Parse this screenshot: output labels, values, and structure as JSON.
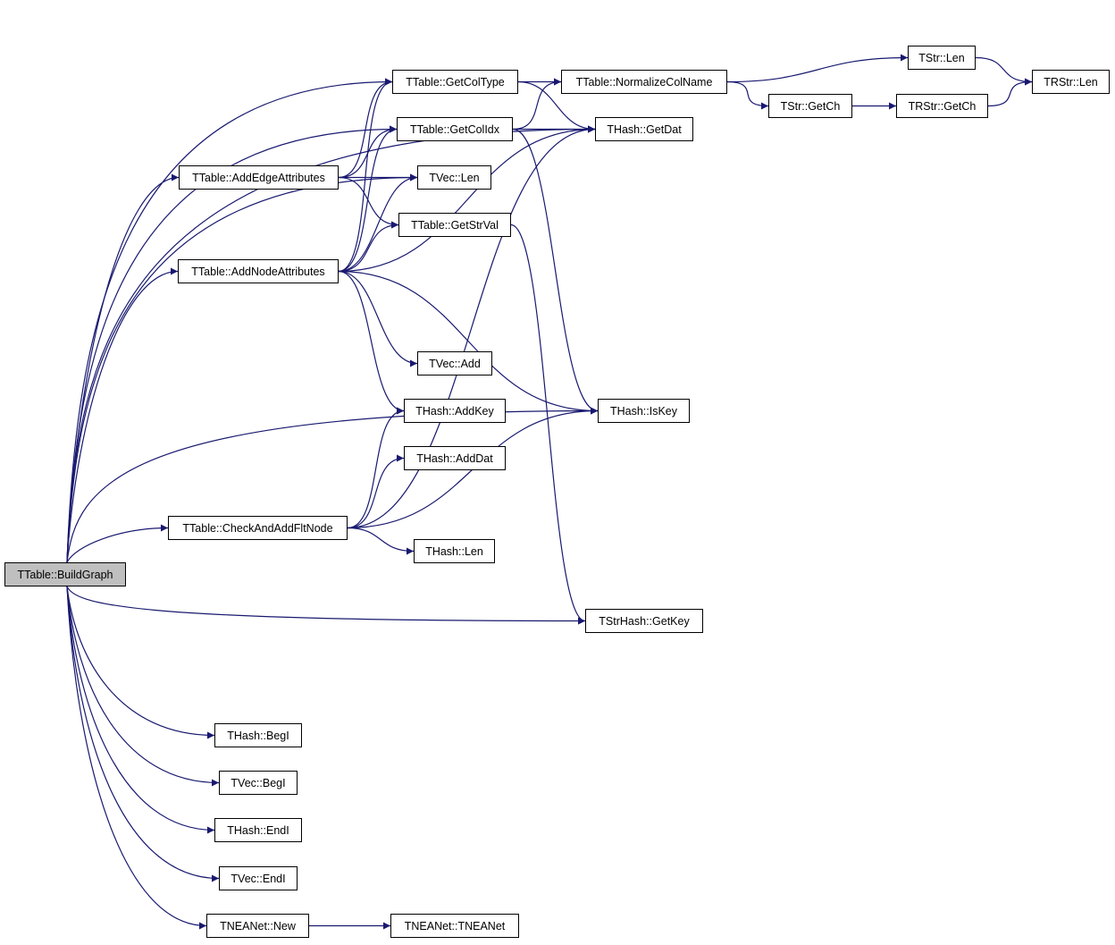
{
  "colors": {
    "edge": "#191970",
    "root_fill": "#bfbfbf",
    "node_fill": "#ffffff",
    "border": "#000000"
  },
  "nodes": {
    "buildgraph": "TTable::BuildGraph",
    "getcoltype": "TTable::GetColType",
    "getcolidx": "TTable::GetColIdx",
    "addedge": "TTable::AddEdgeAttributes",
    "tveclen": "TVec::Len",
    "getstrval": "TTable::GetStrVal",
    "addnode": "TTable::AddNodeAttributes",
    "normalize": "TTable::NormalizeColName",
    "getdat": "THash::GetDat",
    "tstrlen": "TStr::Len",
    "tstrgetch": "TStr::GetCh",
    "trstrgetch": "TRStr::GetCh",
    "trstrlen": "TRStr::Len",
    "tvecadd": "TVec::Add",
    "addkey": "THash::AddKey",
    "iskey": "THash::IsKey",
    "adddat": "THash::AddDat",
    "checkadd": "TTable::CheckAndAddFltNode",
    "thashlen": "THash::Len",
    "getkey": "TStrHash::GetKey",
    "thashbegi": "THash::BegI",
    "tvecbegi": "TVec::BegI",
    "thashendi": "THash::EndI",
    "tvecendi": "TVec::EndI",
    "neanetnew": "TNEANet::New",
    "neanetctor": "TNEANet::TNEANet"
  },
  "edges": [
    [
      "buildgraph",
      "getcoltype"
    ],
    [
      "buildgraph",
      "getcolidx"
    ],
    [
      "buildgraph",
      "addedge"
    ],
    [
      "buildgraph",
      "tveclen"
    ],
    [
      "buildgraph",
      "addnode"
    ],
    [
      "buildgraph",
      "checkadd"
    ],
    [
      "buildgraph",
      "getdat"
    ],
    [
      "buildgraph",
      "iskey"
    ],
    [
      "buildgraph",
      "getkey"
    ],
    [
      "buildgraph",
      "thashbegi"
    ],
    [
      "buildgraph",
      "tvecbegi"
    ],
    [
      "buildgraph",
      "thashendi"
    ],
    [
      "buildgraph",
      "tvecendi"
    ],
    [
      "buildgraph",
      "neanetnew"
    ],
    [
      "addedge",
      "getcoltype"
    ],
    [
      "addedge",
      "getcolidx"
    ],
    [
      "addedge",
      "tveclen"
    ],
    [
      "addedge",
      "getstrval"
    ],
    [
      "addnode",
      "getcoltype"
    ],
    [
      "addnode",
      "getcolidx"
    ],
    [
      "addnode",
      "tveclen"
    ],
    [
      "addnode",
      "getstrval"
    ],
    [
      "addnode",
      "getdat"
    ],
    [
      "addnode",
      "tvecadd"
    ],
    [
      "addnode",
      "addkey"
    ],
    [
      "addnode",
      "iskey"
    ],
    [
      "checkadd",
      "addkey"
    ],
    [
      "checkadd",
      "adddat"
    ],
    [
      "checkadd",
      "iskey"
    ],
    [
      "checkadd",
      "thashlen"
    ],
    [
      "checkadd",
      "getdat"
    ],
    [
      "getcoltype",
      "normalize"
    ],
    [
      "getcoltype",
      "getdat"
    ],
    [
      "getcolidx",
      "normalize"
    ],
    [
      "getcolidx",
      "getdat"
    ],
    [
      "getcolidx",
      "iskey"
    ],
    [
      "getstrval",
      "getkey"
    ],
    [
      "normalize",
      "tstrlen"
    ],
    [
      "normalize",
      "tstrgetch"
    ],
    [
      "tstrlen",
      "trstrlen"
    ],
    [
      "tstrgetch",
      "trstrgetch"
    ],
    [
      "trstrgetch",
      "trstrlen"
    ],
    [
      "neanetnew",
      "neanetctor"
    ]
  ]
}
